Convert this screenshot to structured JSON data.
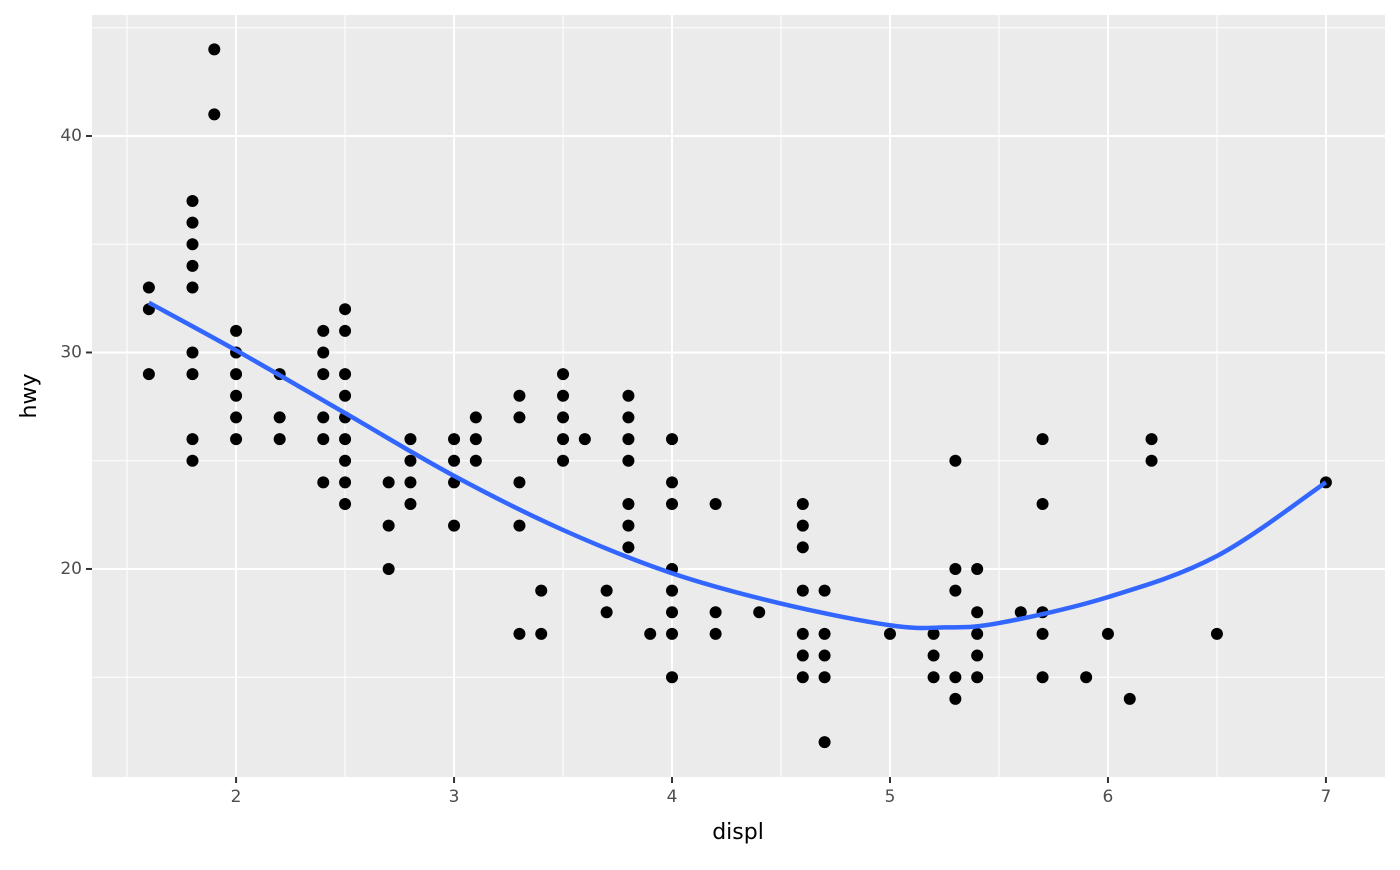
{
  "chart_data": {
    "type": "scatter",
    "x_label": "displ",
    "y_label": "hwy",
    "xlim": [
      1.339,
      7.271
    ],
    "ylim": [
      10.39,
      45.59
    ],
    "xticks": [
      2,
      3,
      4,
      5,
      6,
      7
    ],
    "yticks": [
      20,
      30,
      40
    ],
    "x_minor_ticks": [
      1.5,
      2.5,
      3.5,
      4.5,
      5.5,
      6.5
    ],
    "y_minor_ticks": [
      15,
      25,
      35,
      45
    ],
    "grid": true,
    "series": [
      {
        "type": "scatter",
        "color": "#000000",
        "x": [
          1.6,
          1.6,
          1.6,
          1.8,
          1.8,
          1.8,
          1.8,
          1.8,
          1.8,
          1.8,
          1.8,
          1.8,
          1.9,
          1.9,
          2,
          2,
          2,
          2,
          2,
          2,
          2.2,
          2.2,
          2.2,
          2.4,
          2.4,
          2.4,
          2.4,
          2.4,
          2.4,
          2.5,
          2.5,
          2.5,
          2.5,
          2.5,
          2.5,
          2.5,
          2.5,
          2.5,
          2.7,
          2.7,
          2.7,
          2.8,
          2.8,
          2.8,
          2.8,
          3,
          3,
          3,
          3,
          3.1,
          3.1,
          3.1,
          3.3,
          3.3,
          3.3,
          3.3,
          3.3,
          3.4,
          3.4,
          3.5,
          3.5,
          3.5,
          3.5,
          3.5,
          3.6,
          3.7,
          3.7,
          3.8,
          3.8,
          3.8,
          3.8,
          3.8,
          3.8,
          3.8,
          3.9,
          4,
          4,
          4,
          4,
          4,
          4,
          4,
          4,
          4.2,
          4.2,
          4.2,
          4.4,
          4.6,
          4.6,
          4.6,
          4.6,
          4.6,
          4.6,
          4.6,
          4.7,
          4.7,
          4.7,
          4.7,
          4.7,
          5,
          5.2,
          5.2,
          5.2,
          5.3,
          5.3,
          5.3,
          5.3,
          5.3,
          5.4,
          5.4,
          5.4,
          5.4,
          5.4,
          5.6,
          5.7,
          5.7,
          5.7,
          5.7,
          5.7,
          5.9,
          6,
          6.1,
          6.2,
          6.2,
          6.5,
          7
        ],
        "values": [
          33,
          32,
          29,
          37,
          36,
          35,
          34,
          33,
          30,
          29,
          26,
          25,
          44,
          41,
          31,
          30,
          29,
          28,
          27,
          26,
          29,
          27,
          26,
          31,
          30,
          29,
          27,
          26,
          24,
          32,
          31,
          29,
          28,
          27,
          26,
          25,
          24,
          23,
          24,
          22,
          20,
          26,
          25,
          24,
          23,
          26,
          25,
          24,
          22,
          27,
          26,
          25,
          28,
          27,
          24,
          22,
          17,
          19,
          17,
          29,
          28,
          27,
          26,
          25,
          26,
          19,
          18,
          28,
          27,
          26,
          25,
          23,
          22,
          21,
          17,
          26,
          24,
          23,
          20,
          19,
          18,
          17,
          15,
          23,
          18,
          17,
          18,
          23,
          22,
          21,
          19,
          17,
          16,
          15,
          19,
          17,
          16,
          15,
          12,
          17,
          17,
          16,
          15,
          25,
          20,
          19,
          15,
          14,
          20,
          18,
          17,
          16,
          15,
          18,
          26,
          23,
          18,
          17,
          15,
          15,
          17,
          14,
          26,
          25,
          17,
          24
        ]
      },
      {
        "type": "line",
        "color": "#3366FF",
        "x": [
          1.6,
          2,
          2.5,
          3,
          3.5,
          4,
          4.5,
          5,
          5.25,
          5.5,
          6,
          6.5,
          7
        ],
        "values": [
          32.3,
          30.1,
          27.2,
          24.3,
          21.8,
          19.8,
          18.4,
          17.4,
          17.3,
          17.5,
          18.7,
          20.6,
          24.0
        ]
      }
    ]
  }
}
